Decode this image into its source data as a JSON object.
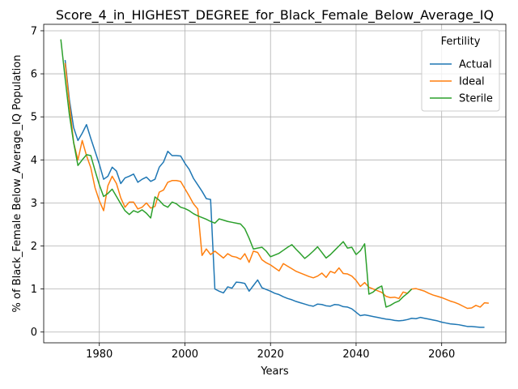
{
  "chart_data": {
    "type": "line",
    "title": "Score_4_in_HIGHEST_DEGREE_for_Black_Female_Below_Average_IQ",
    "xlabel": "Years",
    "ylabel": "% of Black_Female Below_Average_IQ Population",
    "xlim": [
      1967,
      2075
    ],
    "ylim": [
      -0.25,
      7.15
    ],
    "x_ticks": [
      1980,
      2000,
      2020,
      2040,
      2060
    ],
    "x_tick_labels": [
      "1980",
      "2000",
      "2020",
      "2040",
      "2060"
    ],
    "y_ticks": [
      0,
      1,
      2,
      3,
      4,
      5,
      6,
      7
    ],
    "y_tick_labels": [
      "0",
      "1",
      "2",
      "3",
      "4",
      "5",
      "6",
      "7"
    ],
    "grid": true,
    "legend": {
      "title": "Fertility",
      "position": "top-right"
    },
    "series": [
      {
        "name": "Actual",
        "color": "#1f77b4",
        "points": [
          [
            1972,
            6.32
          ],
          [
            1973,
            5.4
          ],
          [
            1974,
            4.75
          ],
          [
            1975,
            4.45
          ],
          [
            1976,
            4.62
          ],
          [
            1977,
            4.82
          ],
          [
            1978,
            4.5
          ],
          [
            1979,
            4.2
          ],
          [
            1980,
            3.9
          ],
          [
            1981,
            3.55
          ],
          [
            1982,
            3.62
          ],
          [
            1983,
            3.83
          ],
          [
            1984,
            3.74
          ],
          [
            1985,
            3.45
          ],
          [
            1986,
            3.58
          ],
          [
            1987,
            3.62
          ],
          [
            1988,
            3.67
          ],
          [
            1989,
            3.48
          ],
          [
            1990,
            3.55
          ],
          [
            1991,
            3.6
          ],
          [
            1992,
            3.5
          ],
          [
            1993,
            3.55
          ],
          [
            1994,
            3.83
          ],
          [
            1995,
            3.95
          ],
          [
            1996,
            4.2
          ],
          [
            1997,
            4.1
          ],
          [
            1998,
            4.1
          ],
          [
            1999,
            4.09
          ],
          [
            2000,
            3.92
          ],
          [
            2001,
            3.78
          ],
          [
            2002,
            3.57
          ],
          [
            2003,
            3.42
          ],
          [
            2004,
            3.27
          ],
          [
            2005,
            3.1
          ],
          [
            2006,
            3.08
          ],
          [
            2007,
            1.0
          ],
          [
            2008,
            0.95
          ],
          [
            2009,
            0.91
          ],
          [
            2010,
            1.05
          ],
          [
            2011,
            1.02
          ],
          [
            2012,
            1.16
          ],
          [
            2013,
            1.15
          ],
          [
            2014,
            1.13
          ],
          [
            2015,
            0.95
          ],
          [
            2016,
            1.08
          ],
          [
            2017,
            1.21
          ],
          [
            2018,
            1.03
          ],
          [
            2019,
            0.99
          ],
          [
            2020,
            0.95
          ],
          [
            2021,
            0.9
          ],
          [
            2022,
            0.87
          ],
          [
            2023,
            0.82
          ],
          [
            2024,
            0.78
          ],
          [
            2025,
            0.75
          ],
          [
            2026,
            0.71
          ],
          [
            2027,
            0.68
          ],
          [
            2028,
            0.65
          ],
          [
            2029,
            0.62
          ],
          [
            2030,
            0.6
          ],
          [
            2031,
            0.65
          ],
          [
            2032,
            0.64
          ],
          [
            2033,
            0.61
          ],
          [
            2034,
            0.6
          ],
          [
            2035,
            0.64
          ],
          [
            2036,
            0.63
          ],
          [
            2037,
            0.59
          ],
          [
            2038,
            0.58
          ],
          [
            2039,
            0.54
          ],
          [
            2040,
            0.46
          ],
          [
            2041,
            0.38
          ],
          [
            2042,
            0.4
          ],
          [
            2043,
            0.38
          ],
          [
            2044,
            0.36
          ],
          [
            2045,
            0.34
          ],
          [
            2046,
            0.32
          ],
          [
            2047,
            0.3
          ],
          [
            2048,
            0.29
          ],
          [
            2049,
            0.27
          ],
          [
            2050,
            0.26
          ],
          [
            2051,
            0.27
          ],
          [
            2052,
            0.29
          ],
          [
            2053,
            0.32
          ],
          [
            2054,
            0.31
          ],
          [
            2055,
            0.34
          ],
          [
            2056,
            0.32
          ],
          [
            2057,
            0.3
          ],
          [
            2058,
            0.28
          ],
          [
            2059,
            0.26
          ],
          [
            2060,
            0.23
          ],
          [
            2061,
            0.21
          ],
          [
            2062,
            0.19
          ],
          [
            2063,
            0.18
          ],
          [
            2064,
            0.17
          ],
          [
            2065,
            0.15
          ],
          [
            2066,
            0.13
          ],
          [
            2067,
            0.13
          ],
          [
            2068,
            0.12
          ],
          [
            2069,
            0.11
          ],
          [
            2070,
            0.11
          ]
        ]
      },
      {
        "name": "Ideal",
        "color": "#ff7f0e",
        "points": [
          [
            1972,
            6.25
          ],
          [
            1973,
            5.3
          ],
          [
            1974,
            4.4
          ],
          [
            1975,
            4.0
          ],
          [
            1976,
            4.45
          ],
          [
            1977,
            4.1
          ],
          [
            1978,
            3.82
          ],
          [
            1979,
            3.35
          ],
          [
            1980,
            3.05
          ],
          [
            1981,
            2.82
          ],
          [
            1982,
            3.4
          ],
          [
            1983,
            3.62
          ],
          [
            1984,
            3.45
          ],
          [
            1985,
            3.12
          ],
          [
            1986,
            2.9
          ],
          [
            1987,
            3.02
          ],
          [
            1988,
            3.02
          ],
          [
            1989,
            2.86
          ],
          [
            1990,
            2.9
          ],
          [
            1991,
            3.0
          ],
          [
            1992,
            2.88
          ],
          [
            1993,
            2.92
          ],
          [
            1994,
            3.25
          ],
          [
            1995,
            3.3
          ],
          [
            1996,
            3.48
          ],
          [
            1997,
            3.52
          ],
          [
            1998,
            3.52
          ],
          [
            1999,
            3.5
          ],
          [
            2000,
            3.33
          ],
          [
            2001,
            3.16
          ],
          [
            2002,
            2.98
          ],
          [
            2003,
            2.86
          ],
          [
            2004,
            1.78
          ],
          [
            2005,
            1.93
          ],
          [
            2006,
            1.8
          ],
          [
            2007,
            1.88
          ],
          [
            2008,
            1.8
          ],
          [
            2009,
            1.72
          ],
          [
            2010,
            1.82
          ],
          [
            2011,
            1.76
          ],
          [
            2012,
            1.74
          ],
          [
            2013,
            1.69
          ],
          [
            2014,
            1.82
          ],
          [
            2015,
            1.62
          ],
          [
            2016,
            1.88
          ],
          [
            2017,
            1.85
          ],
          [
            2018,
            1.68
          ],
          [
            2019,
            1.61
          ],
          [
            2020,
            1.56
          ],
          [
            2021,
            1.49
          ],
          [
            2022,
            1.42
          ],
          [
            2023,
            1.59
          ],
          [
            2024,
            1.53
          ],
          [
            2025,
            1.47
          ],
          [
            2026,
            1.41
          ],
          [
            2027,
            1.37
          ],
          [
            2028,
            1.33
          ],
          [
            2029,
            1.29
          ],
          [
            2030,
            1.26
          ],
          [
            2031,
            1.3
          ],
          [
            2032,
            1.37
          ],
          [
            2033,
            1.27
          ],
          [
            2034,
            1.41
          ],
          [
            2035,
            1.37
          ],
          [
            2036,
            1.49
          ],
          [
            2037,
            1.36
          ],
          [
            2038,
            1.35
          ],
          [
            2039,
            1.3
          ],
          [
            2040,
            1.2
          ],
          [
            2041,
            1.06
          ],
          [
            2042,
            1.15
          ],
          [
            2043,
            1.04
          ],
          [
            2044,
            1.0
          ],
          [
            2045,
            0.96
          ],
          [
            2046,
            0.92
          ],
          [
            2047,
            0.83
          ],
          [
            2048,
            0.8
          ],
          [
            2049,
            0.81
          ],
          [
            2050,
            0.78
          ],
          [
            2051,
            0.93
          ],
          [
            2052,
            0.9
          ],
          [
            2053,
            1.0
          ],
          [
            2054,
            1.01
          ],
          [
            2055,
            0.98
          ],
          [
            2056,
            0.95
          ],
          [
            2057,
            0.9
          ],
          [
            2058,
            0.86
          ],
          [
            2059,
            0.83
          ],
          [
            2060,
            0.8
          ],
          [
            2061,
            0.76
          ],
          [
            2062,
            0.72
          ],
          [
            2063,
            0.69
          ],
          [
            2064,
            0.65
          ],
          [
            2065,
            0.6
          ],
          [
            2066,
            0.55
          ],
          [
            2067,
            0.56
          ],
          [
            2068,
            0.62
          ],
          [
            2069,
            0.58
          ],
          [
            2070,
            0.68
          ],
          [
            2071,
            0.67
          ]
        ]
      },
      {
        "name": "Sterile",
        "color": "#2ca02c",
        "points": [
          [
            1971,
            6.8
          ],
          [
            1972,
            5.9
          ],
          [
            1973,
            5.05
          ],
          [
            1974,
            4.4
          ],
          [
            1975,
            3.87
          ],
          [
            1976,
            4.0
          ],
          [
            1977,
            4.12
          ],
          [
            1978,
            4.1
          ],
          [
            1979,
            3.75
          ],
          [
            1980,
            3.42
          ],
          [
            1981,
            3.15
          ],
          [
            1982,
            3.22
          ],
          [
            1983,
            3.32
          ],
          [
            1984,
            3.15
          ],
          [
            1985,
            2.98
          ],
          [
            1986,
            2.82
          ],
          [
            1987,
            2.73
          ],
          [
            1988,
            2.82
          ],
          [
            1989,
            2.78
          ],
          [
            1990,
            2.84
          ],
          [
            1991,
            2.76
          ],
          [
            1992,
            2.65
          ],
          [
            1993,
            3.14
          ],
          [
            1994,
            3.06
          ],
          [
            1995,
            2.95
          ],
          [
            1996,
            2.9
          ],
          [
            1997,
            3.02
          ],
          [
            1998,
            2.98
          ],
          [
            1999,
            2.9
          ],
          [
            2000,
            2.87
          ],
          [
            2001,
            2.82
          ],
          [
            2002,
            2.75
          ],
          [
            2003,
            2.7
          ],
          [
            2004,
            2.66
          ],
          [
            2005,
            2.62
          ],
          [
            2006,
            2.57
          ],
          [
            2007,
            2.53
          ],
          [
            2008,
            2.63
          ],
          [
            2009,
            2.6
          ],
          [
            2010,
            2.57
          ],
          [
            2011,
            2.55
          ],
          [
            2012,
            2.53
          ],
          [
            2013,
            2.51
          ],
          [
            2014,
            2.4
          ],
          [
            2015,
            2.18
          ],
          [
            2016,
            1.93
          ],
          [
            2017,
            1.95
          ],
          [
            2018,
            1.97
          ],
          [
            2019,
            1.88
          ],
          [
            2020,
            1.75
          ],
          [
            2021,
            1.79
          ],
          [
            2022,
            1.83
          ],
          [
            2023,
            1.9
          ],
          [
            2024,
            1.97
          ],
          [
            2025,
            2.03
          ],
          [
            2026,
            1.92
          ],
          [
            2027,
            1.82
          ],
          [
            2028,
            1.71
          ],
          [
            2029,
            1.79
          ],
          [
            2030,
            1.88
          ],
          [
            2031,
            1.98
          ],
          [
            2032,
            1.85
          ],
          [
            2033,
            1.72
          ],
          [
            2034,
            1.8
          ],
          [
            2035,
            1.9
          ],
          [
            2036,
            2.0
          ],
          [
            2037,
            2.1
          ],
          [
            2038,
            1.95
          ],
          [
            2039,
            1.97
          ],
          [
            2040,
            1.8
          ],
          [
            2041,
            1.89
          ],
          [
            2042,
            2.05
          ],
          [
            2043,
            0.88
          ],
          [
            2044,
            0.93
          ],
          [
            2045,
            1.02
          ],
          [
            2046,
            1.07
          ],
          [
            2047,
            0.58
          ],
          [
            2048,
            0.62
          ],
          [
            2049,
            0.68
          ],
          [
            2050,
            0.72
          ],
          [
            2051,
            0.82
          ],
          [
            2052,
            0.9
          ],
          [
            2053,
            1.0
          ]
        ]
      }
    ]
  }
}
